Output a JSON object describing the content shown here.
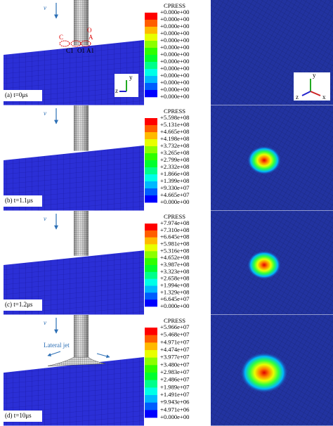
{
  "legend_colors": [
    "#ff0000",
    "#ff5d00",
    "#ffb900",
    "#e8ff00",
    "#8bff00",
    "#2eff00",
    "#00ff2e",
    "#00ff8b",
    "#00ffe8",
    "#00b9ff",
    "#005dff",
    "#0000ff"
  ],
  "panels": [
    {
      "label": "(a) t=0μs",
      "velocity": "v",
      "legend_title": "CPRESS",
      "legend_values": [
        "+0.000e+00",
        "+0.000e+00",
        "+0.000e+00",
        "+0.000e+00",
        "+0.000e+00",
        "+0.000e+00",
        "+0.000e+00",
        "+0.000e+00",
        "+0.000e+00",
        "+0.000e+00",
        "+0.000e+00",
        "+0.000e+00",
        "+0.000e+00"
      ],
      "annotations": [
        "C",
        "O",
        "A",
        "C1",
        "O1",
        "A1"
      ],
      "triad_left": [
        "y",
        "z"
      ],
      "triad_right": [
        "y",
        "z",
        "x"
      ]
    },
    {
      "label": "(b) t=1.1μs",
      "velocity": "v",
      "legend_title": "CPRESS",
      "legend_values": [
        "+5.598e+08",
        "+5.131e+08",
        "+4.665e+08",
        "+4.198e+08",
        "+3.732e+08",
        "+3.265e+08",
        "+2.799e+08",
        "+2.332e+08",
        "+1.866e+08",
        "+1.399e+08",
        "+9.330e+07",
        "+4.665e+07",
        "+0.000e+00"
      ]
    },
    {
      "label": "(c) t=1.2μs",
      "velocity": "v",
      "legend_title": "CPRESS",
      "legend_values": [
        "+7.974e+08",
        "+7.310e+08",
        "+6.645e+08",
        "+5.981e+08",
        "+5.316e+08",
        "+4.652e+08",
        "+3.987e+08",
        "+3.323e+08",
        "+2.658e+08",
        "+1.994e+08",
        "+1.329e+08",
        "+6.645e+07",
        "+0.000e+00"
      ]
    },
    {
      "label": "(d) t=10μs",
      "velocity": "v",
      "legend_title": "CPRESS",
      "jet_label": "Lateral jet",
      "legend_values": [
        "+5.966e+07",
        "+5.468e+07",
        "+4.971e+07",
        "+4.474e+07",
        "+3.977e+07",
        "+3.480e+07",
        "+2.983e+07",
        "+2.486e+07",
        "+1.989e+07",
        "+1.491e+07",
        "+9.943e+06",
        "+4.971e+06",
        "+0.000e+00"
      ]
    }
  ]
}
